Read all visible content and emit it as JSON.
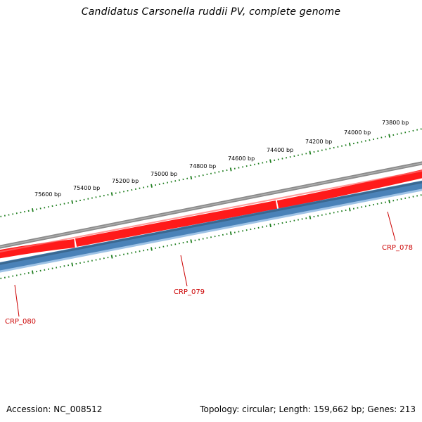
{
  "title": "Candidatus Carsonella ruddii PV, complete genome",
  "footer": {
    "accession_label": "Accession:",
    "accession": "NC_008512",
    "topology_label": "Topology:",
    "topology": "circular",
    "length_label": "Length:",
    "length": "159,662 bp",
    "genes_label": "Genes:",
    "genes": "213"
  },
  "scale_labels": [
    "75600 bp",
    "75400 bp",
    "75200 bp",
    "75000 bp",
    "74800 bp",
    "74600 bp",
    "74400 bp",
    "74200 bp",
    "74000 bp",
    "73800 bp"
  ],
  "genes": [
    {
      "name": "CRP_078",
      "strand": "reverse"
    },
    {
      "name": "CRP_079",
      "strand": "reverse"
    },
    {
      "name": "CRP_080",
      "strand": "reverse"
    }
  ],
  "colors": {
    "backbone": "#808080",
    "forward_gene": "#ff0000",
    "reverse_gene": "#4682b4",
    "tick": "#1e7d1e",
    "gene_label": "#cc0000"
  }
}
